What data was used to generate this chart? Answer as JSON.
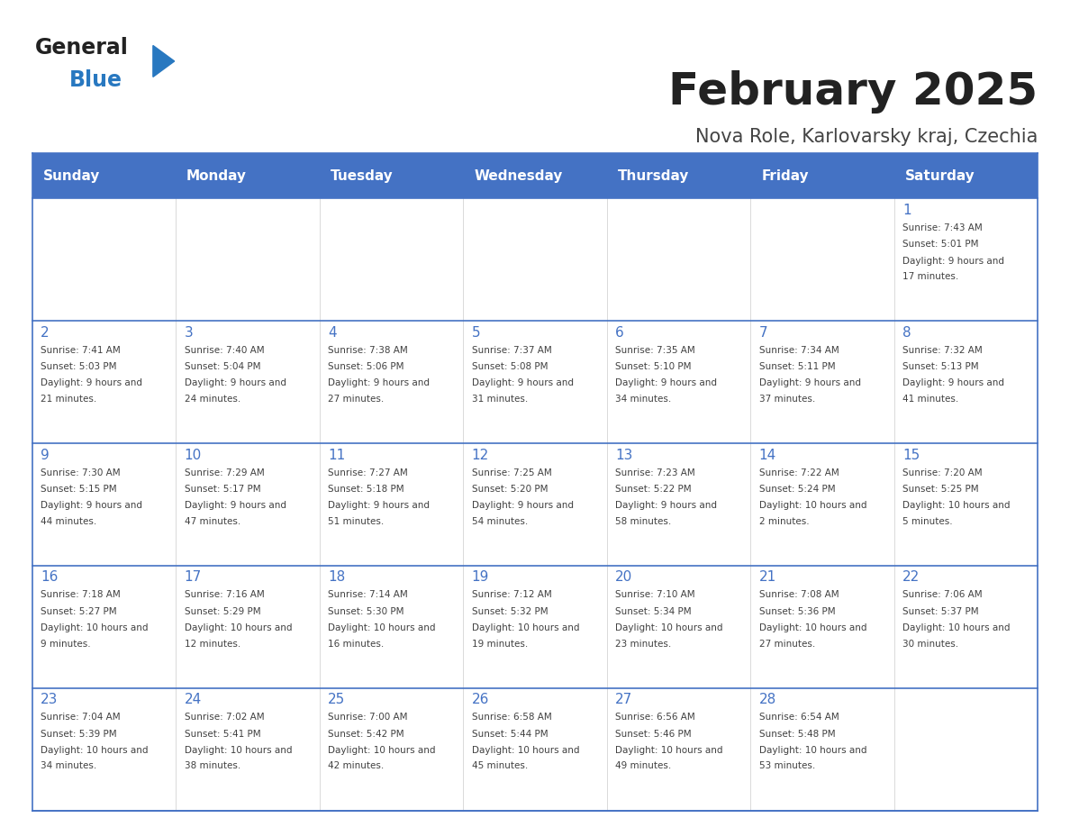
{
  "title": "February 2025",
  "subtitle": "Nova Role, Karlovarsky kraj, Czechia",
  "header_color": "#4472C4",
  "header_text_color": "#FFFFFF",
  "weekdays": [
    "Sunday",
    "Monday",
    "Tuesday",
    "Wednesday",
    "Thursday",
    "Friday",
    "Saturday"
  ],
  "bg_color": "#FFFFFF",
  "cell_border_color": "#4472C4",
  "day_text_color": "#4472C4",
  "info_text_color": "#404040",
  "calendar": [
    [
      null,
      null,
      null,
      null,
      null,
      null,
      {
        "day": 1,
        "sunrise": "7:43 AM",
        "sunset": "5:01 PM",
        "daylight": "9 hours and 17 minutes."
      }
    ],
    [
      {
        "day": 2,
        "sunrise": "7:41 AM",
        "sunset": "5:03 PM",
        "daylight": "9 hours and 21 minutes."
      },
      {
        "day": 3,
        "sunrise": "7:40 AM",
        "sunset": "5:04 PM",
        "daylight": "9 hours and 24 minutes."
      },
      {
        "day": 4,
        "sunrise": "7:38 AM",
        "sunset": "5:06 PM",
        "daylight": "9 hours and 27 minutes."
      },
      {
        "day": 5,
        "sunrise": "7:37 AM",
        "sunset": "5:08 PM",
        "daylight": "9 hours and 31 minutes."
      },
      {
        "day": 6,
        "sunrise": "7:35 AM",
        "sunset": "5:10 PM",
        "daylight": "9 hours and 34 minutes."
      },
      {
        "day": 7,
        "sunrise": "7:34 AM",
        "sunset": "5:11 PM",
        "daylight": "9 hours and 37 minutes."
      },
      {
        "day": 8,
        "sunrise": "7:32 AM",
        "sunset": "5:13 PM",
        "daylight": "9 hours and 41 minutes."
      }
    ],
    [
      {
        "day": 9,
        "sunrise": "7:30 AM",
        "sunset": "5:15 PM",
        "daylight": "9 hours and 44 minutes."
      },
      {
        "day": 10,
        "sunrise": "7:29 AM",
        "sunset": "5:17 PM",
        "daylight": "9 hours and 47 minutes."
      },
      {
        "day": 11,
        "sunrise": "7:27 AM",
        "sunset": "5:18 PM",
        "daylight": "9 hours and 51 minutes."
      },
      {
        "day": 12,
        "sunrise": "7:25 AM",
        "sunset": "5:20 PM",
        "daylight": "9 hours and 54 minutes."
      },
      {
        "day": 13,
        "sunrise": "7:23 AM",
        "sunset": "5:22 PM",
        "daylight": "9 hours and 58 minutes."
      },
      {
        "day": 14,
        "sunrise": "7:22 AM",
        "sunset": "5:24 PM",
        "daylight": "10 hours and 2 minutes."
      },
      {
        "day": 15,
        "sunrise": "7:20 AM",
        "sunset": "5:25 PM",
        "daylight": "10 hours and 5 minutes."
      }
    ],
    [
      {
        "day": 16,
        "sunrise": "7:18 AM",
        "sunset": "5:27 PM",
        "daylight": "10 hours and 9 minutes."
      },
      {
        "day": 17,
        "sunrise": "7:16 AM",
        "sunset": "5:29 PM",
        "daylight": "10 hours and 12 minutes."
      },
      {
        "day": 18,
        "sunrise": "7:14 AM",
        "sunset": "5:30 PM",
        "daylight": "10 hours and 16 minutes."
      },
      {
        "day": 19,
        "sunrise": "7:12 AM",
        "sunset": "5:32 PM",
        "daylight": "10 hours and 19 minutes."
      },
      {
        "day": 20,
        "sunrise": "7:10 AM",
        "sunset": "5:34 PM",
        "daylight": "10 hours and 23 minutes."
      },
      {
        "day": 21,
        "sunrise": "7:08 AM",
        "sunset": "5:36 PM",
        "daylight": "10 hours and 27 minutes."
      },
      {
        "day": 22,
        "sunrise": "7:06 AM",
        "sunset": "5:37 PM",
        "daylight": "10 hours and 30 minutes."
      }
    ],
    [
      {
        "day": 23,
        "sunrise": "7:04 AM",
        "sunset": "5:39 PM",
        "daylight": "10 hours and 34 minutes."
      },
      {
        "day": 24,
        "sunrise": "7:02 AM",
        "sunset": "5:41 PM",
        "daylight": "10 hours and 38 minutes."
      },
      {
        "day": 25,
        "sunrise": "7:00 AM",
        "sunset": "5:42 PM",
        "daylight": "10 hours and 42 minutes."
      },
      {
        "day": 26,
        "sunrise": "6:58 AM",
        "sunset": "5:44 PM",
        "daylight": "10 hours and 45 minutes."
      },
      {
        "day": 27,
        "sunrise": "6:56 AM",
        "sunset": "5:46 PM",
        "daylight": "10 hours and 49 minutes."
      },
      {
        "day": 28,
        "sunrise": "6:54 AM",
        "sunset": "5:48 PM",
        "daylight": "10 hours and 53 minutes."
      },
      null
    ]
  ],
  "logo_general_color": "#222222",
  "logo_blue_color": "#2878C0",
  "logo_triangle_color": "#2878C0"
}
